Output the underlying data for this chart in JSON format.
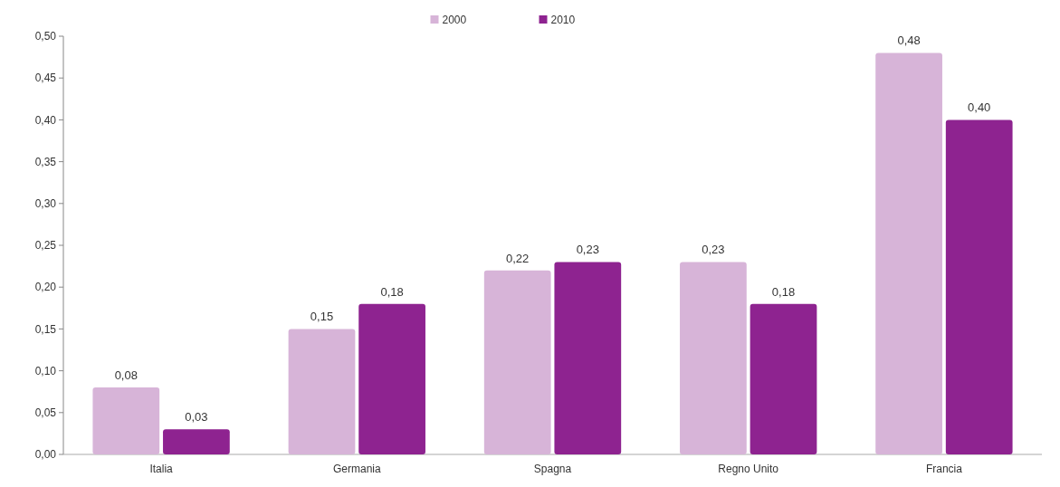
{
  "chart_data": {
    "type": "bar",
    "categories": [
      "Italia",
      "Germania",
      "Spagna",
      "Regno Unito",
      "Francia"
    ],
    "series": [
      {
        "name": "2000",
        "color": "#d7b4d8",
        "values": [
          0.08,
          0.15,
          0.22,
          0.23,
          0.48
        ],
        "value_labels": [
          "0,08",
          "0,15",
          "0,22",
          "0,23",
          "0,48"
        ]
      },
      {
        "name": "2010",
        "color": "#8e2390",
        "values": [
          0.03,
          0.18,
          0.23,
          0.18,
          0.4
        ],
        "value_labels": [
          "0,03",
          "0,18",
          "0,23",
          "0,18",
          "0,40"
        ]
      }
    ],
    "ylim": [
      0,
      0.5
    ],
    "yticks": [
      {
        "value": 0,
        "label": "0,00"
      },
      {
        "value": 0.05,
        "label": "0,05"
      },
      {
        "value": 0.1,
        "label": "0,10"
      },
      {
        "value": 0.15,
        "label": "0,15"
      },
      {
        "value": 0.2,
        "label": "0,20"
      },
      {
        "value": 0.25,
        "label": "0,25"
      },
      {
        "value": 0.3,
        "label": "0,30"
      },
      {
        "value": 0.35,
        "label": "0,35"
      },
      {
        "value": 0.4,
        "label": "0,40"
      },
      {
        "value": 0.45,
        "label": "0,45"
      },
      {
        "value": 0.5,
        "label": "0,50"
      }
    ],
    "legend": "top",
    "grid": false
  }
}
